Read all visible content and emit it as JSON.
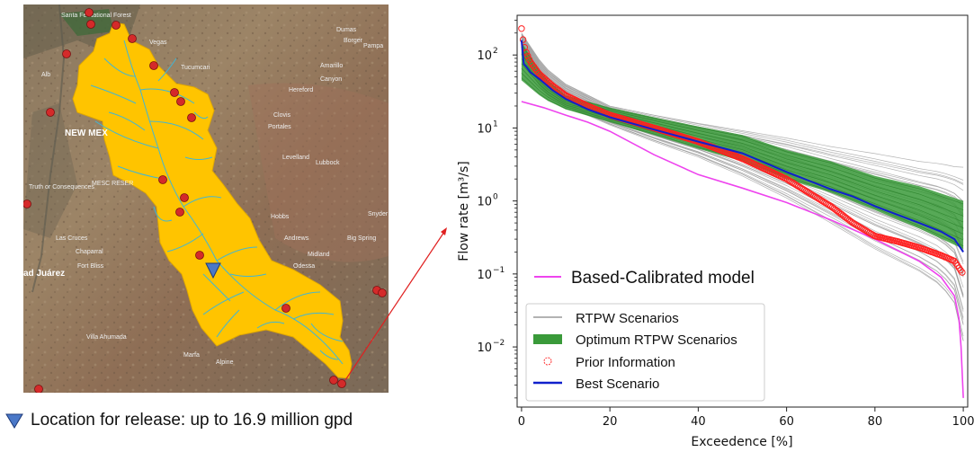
{
  "map": {
    "place_labels": [
      "Santa Fe National Forest",
      "Vegas",
      "Alb",
      "Tucumcari",
      "Amarillo",
      "Canyon",
      "Hereford",
      "Dumas",
      "Borger",
      "Pampa",
      "NEW MEX",
      "Clovis",
      "Portales",
      "Lubbock",
      "Levelland",
      "Truth or Consequences",
      "Las Cruces",
      "Chaparral",
      "Fort Bliss",
      "Hobbs",
      "Andrews",
      "Odessa",
      "Big Spring",
      "Snyder",
      "Midland",
      "Alpine",
      "Villa Ahumada",
      "Marfa",
      "ad Juárez",
      "MESC RESER"
    ],
    "caption": {
      "icon": "blue-down-triangle-icon",
      "text": "Location for release: up to 16.9 million gpd"
    },
    "colors": {
      "basin": "#ffc400",
      "streams": "#3fb6d6",
      "gauges": "#d42a2a",
      "release": "#4a78c8"
    }
  },
  "chart_data": {
    "type": "line",
    "xlabel": "Exceedence [%]",
    "ylabel": "Flow rate [m³/s]",
    "xlim": [
      -1,
      101
    ],
    "ylim": [
      0.0015,
      350
    ],
    "yscale": "log",
    "xticks": [
      0,
      20,
      40,
      60,
      80,
      100
    ],
    "xtick_labels": [
      "0",
      "20",
      "40",
      "60",
      "80",
      "100"
    ],
    "yticks": [
      0.01,
      0.1,
      1,
      10,
      100
    ],
    "ytick_labels": [
      {
        "base": "10",
        "exp": "−2"
      },
      {
        "base": "10",
        "exp": "−1"
      },
      {
        "base": "10",
        "exp": "0"
      },
      {
        "base": "10",
        "exp": "1"
      },
      {
        "base": "10",
        "exp": "2"
      }
    ],
    "grid": false,
    "legend": [
      {
        "label": "Based-Calibrated model",
        "color": "#ee44ee"
      },
      {
        "label": "RTPW Scenarios",
        "color": "#9a9a9a"
      },
      {
        "label": "Optimum RTPW Scenarios",
        "color": "#3a9a3a"
      },
      {
        "label": "Prior Information",
        "color": "#ff3030"
      },
      {
        "label": "Best Scenario",
        "color": "#1020cc"
      }
    ],
    "series": [
      {
        "name": "Based-Calibrated model",
        "x": [
          0,
          5,
          10,
          15,
          20,
          30,
          40,
          50,
          60,
          70,
          80,
          90,
          95,
          98,
          99,
          99.5,
          100
        ],
        "y": [
          23,
          19,
          15,
          12,
          9,
          4.3,
          2.3,
          1.5,
          0.95,
          0.55,
          0.3,
          0.15,
          0.09,
          0.05,
          0.025,
          0.01,
          0.002
        ]
      },
      {
        "name": "Best Scenario",
        "x": [
          0,
          0.5,
          1,
          2,
          4,
          7,
          10,
          15,
          20,
          30,
          40,
          50,
          60,
          65,
          70,
          75,
          80,
          85,
          90,
          95,
          98,
          100
        ],
        "y": [
          160,
          75,
          70,
          58,
          47,
          33,
          25,
          18,
          14,
          9.5,
          6.5,
          4.5,
          2.5,
          1.9,
          1.45,
          1.15,
          0.85,
          0.65,
          0.5,
          0.38,
          0.3,
          0.2
        ]
      },
      {
        "name": "Prior Information",
        "x": [
          0,
          0.5,
          1,
          2,
          4,
          7,
          10,
          15,
          20,
          30,
          40,
          50,
          60,
          65,
          70,
          75,
          80,
          85,
          90,
          95,
          98,
          100
        ],
        "y": [
          230,
          140,
          110,
          80,
          55,
          38,
          28,
          20,
          15,
          10,
          6.5,
          3.8,
          2.0,
          1.3,
          0.85,
          0.5,
          0.33,
          0.28,
          0.23,
          0.18,
          0.15,
          0.1
        ]
      },
      {
        "name": "RTPW envelope upper",
        "x": [
          0,
          5,
          10,
          20,
          30,
          40,
          50,
          60,
          70,
          80,
          90,
          95,
          100
        ],
        "y": [
          200,
          70,
          40,
          20,
          15,
          11.5,
          9,
          7,
          5.2,
          4,
          3,
          2.7,
          2.2
        ]
      },
      {
        "name": "RTPW envelope lower",
        "x": [
          0,
          5,
          10,
          20,
          30,
          40,
          50,
          60,
          70,
          80,
          90,
          95,
          98,
          100
        ],
        "y": [
          100,
          30,
          20,
          11,
          6.5,
          4,
          2.2,
          1.1,
          0.5,
          0.22,
          0.11,
          0.07,
          0.04,
          0.012
        ]
      },
      {
        "name": "Optimum RTPW envelope upper",
        "x": [
          0,
          5,
          10,
          20,
          30,
          40,
          50,
          60,
          70,
          80,
          90,
          100
        ],
        "y": [
          150,
          50,
          28,
          19,
          14,
          10.5,
          8,
          5,
          3.5,
          2.2,
          1.6,
          1.0
        ]
      },
      {
        "name": "Optimum RTPW envelope lower",
        "x": [
          0,
          5,
          10,
          20,
          30,
          40,
          50,
          60,
          70,
          80,
          90,
          100
        ],
        "y": [
          45,
          25,
          18,
          12,
          8,
          5.2,
          3.5,
          2.0,
          1.3,
          0.75,
          0.42,
          0.22
        ]
      }
    ]
  }
}
